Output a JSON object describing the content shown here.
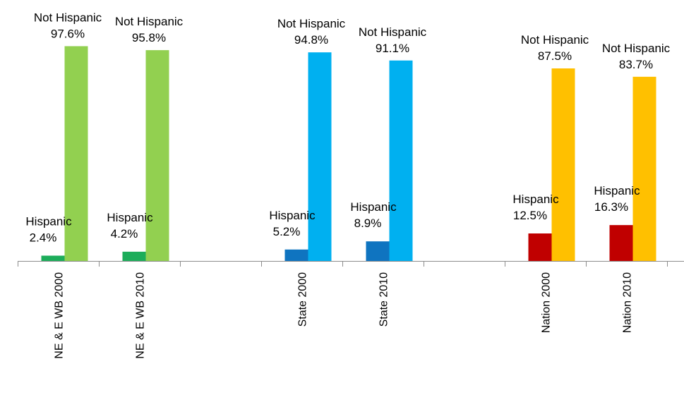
{
  "chart_data": {
    "type": "bar",
    "title": "",
    "xlabel": "",
    "ylabel": "",
    "ylim": [
      0,
      100
    ],
    "grid": false,
    "legend": "none",
    "categories": [
      "NE & E WB 2000",
      "NE & E WB 2010",
      "State 2000",
      "State 2010",
      "Nation 2000",
      "Nation 2010"
    ],
    "series": [
      {
        "name": "Hispanic",
        "values": [
          2.4,
          4.2,
          5.2,
          8.9,
          12.5,
          16.3
        ],
        "labels": [
          "2.4%",
          "4.2%",
          "5.2%",
          "8.9%",
          "12.5%",
          "16.3%"
        ],
        "colors": [
          "#1cad5a",
          "#1cad5a",
          "#0f74c0",
          "#0f74c0",
          "#c00000",
          "#c00000"
        ]
      },
      {
        "name": "Not Hispanic",
        "values": [
          97.6,
          95.8,
          94.8,
          91.1,
          87.5,
          83.7
        ],
        "labels": [
          "97.6%",
          "95.8%",
          "94.8%",
          "91.1%",
          "87.5%",
          "83.7%"
        ],
        "colors": [
          "#92d050",
          "#92d050",
          "#00b0f0",
          "#00b0f0",
          "#ffc000",
          "#ffc000"
        ]
      }
    ]
  }
}
